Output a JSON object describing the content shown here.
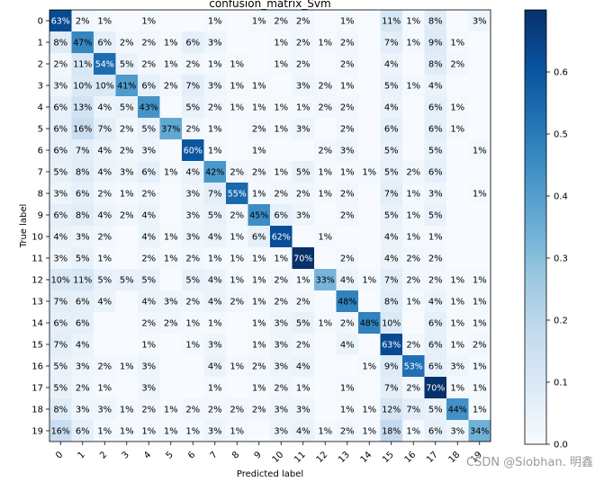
{
  "chart_data": {
    "type": "heatmap",
    "title": "confusion_matrix_Svm",
    "xlabel": "Predicted label",
    "ylabel": "True label",
    "x_tick_labels": [
      "0",
      "1",
      "2",
      "3",
      "4",
      "5",
      "6",
      "7",
      "8",
      "9",
      "10",
      "11",
      "12",
      "13",
      "14",
      "15",
      "16",
      "17",
      "18",
      "19"
    ],
    "y_tick_labels": [
      "0",
      "1",
      "2",
      "3",
      "4",
      "5",
      "6",
      "7",
      "8",
      "9",
      "10",
      "11",
      "12",
      "13",
      "14",
      "15",
      "16",
      "17",
      "18",
      "19"
    ],
    "values": [
      [
        63,
        2,
        1,
        0,
        1,
        0,
        0,
        1,
        0,
        1,
        2,
        2,
        0,
        1,
        0,
        11,
        1,
        8,
        0,
        3
      ],
      [
        8,
        47,
        6,
        2,
        2,
        1,
        6,
        3,
        0,
        0,
        1,
        2,
        1,
        2,
        0,
        7,
        1,
        9,
        1,
        0
      ],
      [
        2,
        11,
        54,
        5,
        2,
        1,
        2,
        1,
        1,
        0,
        1,
        2,
        0,
        2,
        0,
        4,
        0,
        8,
        2,
        0
      ],
      [
        3,
        10,
        10,
        41,
        6,
        2,
        7,
        3,
        1,
        1,
        0,
        3,
        2,
        1,
        0,
        5,
        1,
        4,
        0,
        0
      ],
      [
        6,
        13,
        4,
        5,
        43,
        0,
        5,
        2,
        1,
        1,
        1,
        1,
        2,
        2,
        0,
        4,
        0,
        6,
        1,
        0
      ],
      [
        6,
        16,
        7,
        2,
        5,
        37,
        2,
        1,
        0,
        2,
        1,
        3,
        0,
        2,
        0,
        6,
        0,
        6,
        1,
        0
      ],
      [
        6,
        7,
        4,
        2,
        3,
        0,
        60,
        1,
        0,
        1,
        0,
        0,
        2,
        3,
        0,
        5,
        0,
        5,
        0,
        1
      ],
      [
        5,
        8,
        4,
        3,
        6,
        1,
        4,
        42,
        2,
        2,
        1,
        5,
        1,
        1,
        1,
        5,
        2,
        6,
        0,
        0
      ],
      [
        3,
        6,
        2,
        1,
        2,
        0,
        3,
        7,
        55,
        1,
        2,
        2,
        1,
        2,
        0,
        7,
        1,
        3,
        0,
        1
      ],
      [
        6,
        8,
        4,
        2,
        4,
        0,
        3,
        5,
        2,
        45,
        6,
        3,
        0,
        2,
        0,
        5,
        1,
        5,
        0,
        0
      ],
      [
        4,
        3,
        2,
        0,
        4,
        1,
        3,
        4,
        1,
        6,
        62,
        0,
        1,
        0,
        0,
        4,
        1,
        1,
        0,
        0
      ],
      [
        3,
        5,
        1,
        0,
        2,
        1,
        2,
        1,
        1,
        1,
        1,
        70,
        0,
        2,
        0,
        4,
        2,
        2,
        0,
        0
      ],
      [
        10,
        11,
        5,
        5,
        5,
        0,
        5,
        4,
        1,
        1,
        2,
        1,
        33,
        4,
        1,
        7,
        2,
        2,
        1,
        1
      ],
      [
        7,
        6,
        4,
        0,
        4,
        3,
        2,
        4,
        2,
        1,
        2,
        2,
        0,
        48,
        0,
        8,
        1,
        4,
        1,
        1
      ],
      [
        6,
        6,
        0,
        0,
        2,
        2,
        1,
        1,
        0,
        1,
        3,
        5,
        1,
        2,
        48,
        10,
        0,
        6,
        1,
        1
      ],
      [
        7,
        4,
        0,
        0,
        1,
        0,
        1,
        3,
        0,
        1,
        3,
        2,
        0,
        4,
        0,
        63,
        2,
        6,
        1,
        2
      ],
      [
        5,
        3,
        2,
        1,
        3,
        0,
        0,
        4,
        1,
        2,
        3,
        4,
        0,
        0,
        1,
        9,
        53,
        6,
        3,
        1
      ],
      [
        5,
        2,
        1,
        0,
        3,
        0,
        0,
        1,
        0,
        1,
        2,
        1,
        0,
        1,
        0,
        7,
        2,
        70,
        1,
        1
      ],
      [
        8,
        3,
        3,
        1,
        2,
        1,
        2,
        2,
        2,
        2,
        3,
        3,
        0,
        1,
        1,
        12,
        7,
        5,
        44,
        1
      ],
      [
        16,
        6,
        1,
        1,
        1,
        1,
        1,
        3,
        1,
        0,
        3,
        4,
        1,
        2,
        1,
        18,
        1,
        6,
        3,
        34
      ]
    ],
    "value_format": "percent",
    "colorbar": {
      "colormap": "Blues",
      "min": 0,
      "max": 0.7,
      "ticks": [
        0.0,
        0.1,
        0.2,
        0.3,
        0.4,
        0.5,
        0.6
      ],
      "tick_labels": [
        "0.0",
        "0.1",
        "0.2",
        "0.3",
        "0.4",
        "0.5",
        "0.6"
      ]
    },
    "grid": false,
    "legend": "colorbar-right"
  },
  "watermark": "CSDN @Siobhan. 明鑫"
}
